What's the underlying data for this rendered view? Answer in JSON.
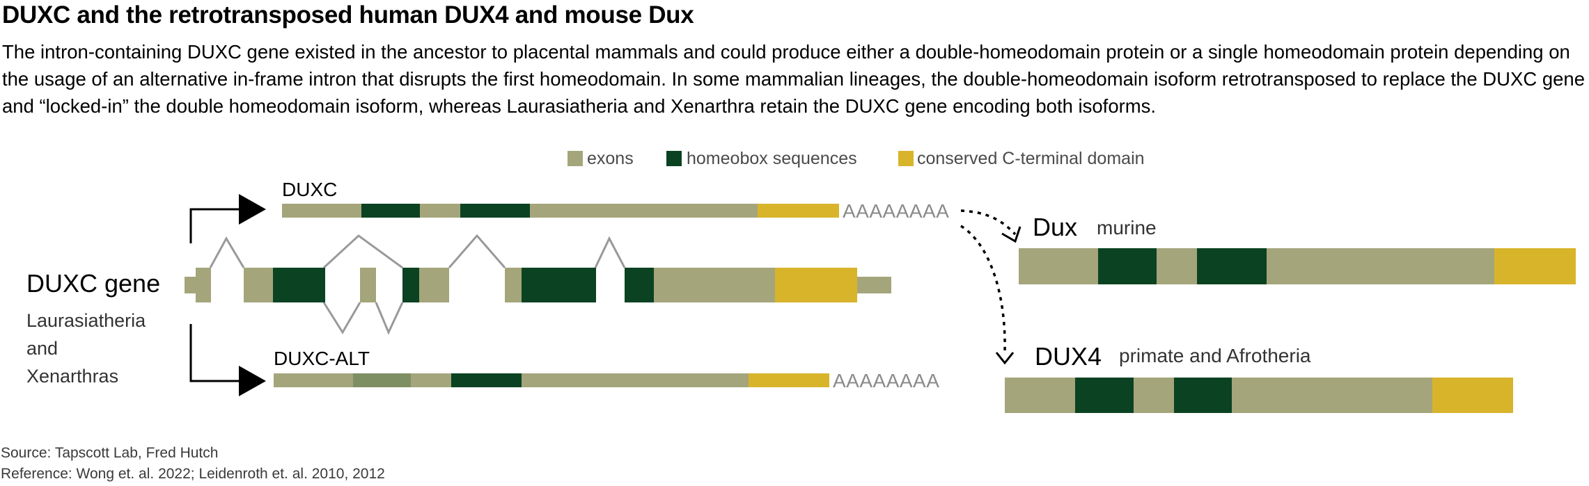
{
  "title": "DUXC and the retrotransposed human DUX4 and mouse Dux",
  "description": "The intron-containing DUXC gene existed in the ancestor to placental mammals and could produce either a double-homeodomain protein or a single homeodomain protein depending on the usage of an alternative in-frame intron that disrupts the first homeodomain. In some mammalian lineages, the double-homeodomain isoform retrotransposed to replace the DUXC gene and “locked-in” the double homeodomain isoform, whereas Laurasiatheria and Xenarthra retain the DUXC gene encoding both isoforms.",
  "legend": [
    {
      "label": "exons",
      "color": "#a4a57b"
    },
    {
      "label": "homeobox sequences",
      "color": "#0b4322"
    },
    {
      "label": "conserved C-terminal domain",
      "color": "#d8b42b"
    }
  ],
  "colors": {
    "exon": "#a4a57b",
    "homeobox": "#0b4322",
    "cterm": "#d8b42b",
    "alt_exon": "#7f8f64",
    "line": "#999999",
    "polya": "#8a8a8a"
  },
  "gene": {
    "name": "DUXC gene",
    "species_lines": [
      "Laurasiatheria",
      "and",
      "Xenarthras"
    ]
  },
  "transcripts": {
    "duxc": {
      "label": "DUXC",
      "polya": "AAAAAAAA"
    },
    "duxc_alt": {
      "label": "DUXC-ALT",
      "polya": "AAAAAAAA"
    }
  },
  "retrogenes": {
    "dux": {
      "label": "Dux",
      "species": "murine"
    },
    "dux4": {
      "label": "DUX4",
      "species": "primate and Afrotheria"
    }
  },
  "source": "Source: Tapscott Lab, Fred Hutch",
  "reference": "Reference: Wong et. al. 2022;  Leidenroth et. al. 2010, 2012"
}
